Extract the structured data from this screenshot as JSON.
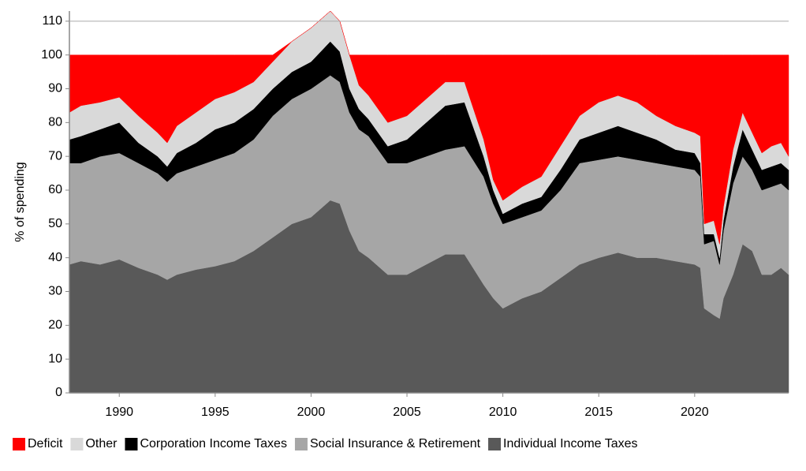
{
  "chart_data": {
    "type": "stacked-area",
    "y_label": "% of spending",
    "x": [
      1987.4,
      1988,
      1989,
      1990,
      1991,
      1992,
      1992.5,
      1993,
      1994,
      1995,
      1996,
      1997,
      1998,
      1999,
      2000,
      2001,
      2001.5,
      2002,
      2002.5,
      2003,
      2004,
      2005,
      2006,
      2007,
      2008,
      2009,
      2009.5,
      2010,
      2011,
      2012,
      2013,
      2014,
      2015,
      2016,
      2017,
      2018,
      2019,
      2020,
      2020.3,
      2020.5,
      2021,
      2021.3,
      2021.5,
      2022,
      2022.5,
      2023,
      2023.5,
      2024,
      2024.5,
      2024.9
    ],
    "series": [
      {
        "name": "Individual Income Taxes",
        "color": "#595959",
        "values": [
          38,
          39,
          38,
          39.5,
          37,
          35,
          33.5,
          35,
          36.5,
          37.5,
          39,
          42,
          46,
          50,
          52,
          57,
          56,
          48,
          42,
          40,
          35,
          35,
          38,
          41,
          41,
          32,
          28,
          25,
          28,
          30,
          34,
          38,
          40,
          41.5,
          40,
          40,
          39,
          38,
          37,
          25,
          23,
          22,
          28,
          35,
          44,
          42,
          35,
          35,
          37,
          35
        ]
      },
      {
        "name": "Social Insurance & Retirement",
        "color": "#a6a6a6",
        "values": [
          30,
          29,
          32,
          31.5,
          31,
          30,
          29,
          30,
          30.5,
          31.5,
          32,
          33,
          36,
          37,
          38,
          37,
          36,
          35,
          36,
          36,
          33,
          33,
          32,
          31,
          32,
          32,
          28,
          25,
          24,
          24,
          26,
          30,
          29,
          28.5,
          29,
          28,
          28,
          28,
          27,
          19,
          22,
          16,
          20,
          27,
          26,
          24,
          25,
          26,
          25,
          25
        ]
      },
      {
        "name": "Corporation Income Taxes",
        "color": "#000000",
        "values": [
          7,
          8,
          8,
          9,
          6,
          5,
          4.5,
          6,
          7,
          9,
          9,
          9,
          8,
          8,
          8,
          10,
          9,
          7,
          6,
          5,
          5,
          7,
          10,
          13,
          13,
          6,
          4,
          3,
          4,
          4,
          6,
          7,
          8,
          9,
          8,
          7,
          5,
          5,
          4,
          3,
          2,
          2,
          3,
          5,
          8,
          6,
          6,
          6,
          6,
          6
        ]
      },
      {
        "name": "Other",
        "color": "#d9d9d9",
        "values": [
          8,
          9,
          8,
          7.5,
          8,
          7,
          7,
          8,
          9,
          9,
          9,
          8,
          8,
          9,
          10,
          9,
          9,
          10,
          7,
          7,
          7,
          7,
          7,
          7,
          6,
          5,
          3,
          4,
          5,
          6,
          7,
          7,
          9,
          9,
          9,
          7,
          7,
          6,
          8,
          3,
          4,
          4,
          4,
          5,
          5,
          5,
          5,
          6,
          6,
          4
        ]
      },
      {
        "name": "Deficit",
        "color": "#ff0000",
        "values": [
          17,
          15,
          14,
          12.5,
          18,
          23,
          26,
          21,
          17,
          13,
          11,
          8,
          2,
          0,
          0,
          0,
          0,
          0,
          9,
          12,
          20,
          18,
          13,
          8,
          8,
          25,
          37,
          43,
          39,
          36,
          27,
          18,
          14,
          12,
          14,
          18,
          21,
          23,
          24,
          50,
          49,
          56,
          45,
          28,
          17,
          23,
          29,
          27,
          26,
          30
        ]
      }
    ],
    "xlim": [
      1987.4,
      2024.9
    ],
    "xticks": [
      1990,
      1995,
      2000,
      2005,
      2010,
      2015,
      2020
    ],
    "ylim": [
      0,
      113
    ],
    "yticks": [
      0,
      10,
      20,
      30,
      40,
      50,
      60,
      70,
      80,
      90,
      100,
      110
    ],
    "legend": "bottom"
  }
}
